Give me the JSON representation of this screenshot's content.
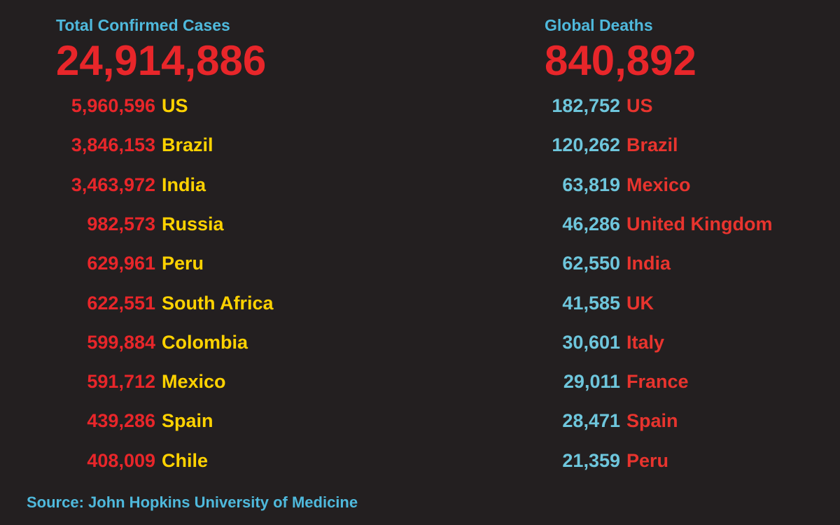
{
  "left": {
    "title": "Total Confirmed Cases",
    "total": "24,914,886",
    "rows": [
      [
        "5,960,596",
        "US"
      ],
      [
        "3,846,153",
        "Brazil"
      ],
      [
        "3,463,972",
        "India"
      ],
      [
        "982,573",
        "Russia"
      ],
      [
        "629,961",
        "Peru"
      ],
      [
        "622,551",
        "South Africa"
      ],
      [
        "599,884",
        "Colombia"
      ],
      [
        "591,712",
        "Mexico"
      ],
      [
        "439,286",
        "Spain"
      ],
      [
        "408,009",
        "Chile"
      ]
    ]
  },
  "right": {
    "title": "Global Deaths",
    "total": "840,892",
    "rows": [
      [
        "182,752",
        "US"
      ],
      [
        "120,262",
        "Brazil"
      ],
      [
        "63,819",
        "Mexico"
      ],
      [
        "46,286",
        "United Kingdom"
      ],
      [
        "62,550",
        "India"
      ],
      [
        "41,585",
        "UK"
      ],
      [
        "30,601",
        "Italy"
      ],
      [
        "29,011",
        "France"
      ],
      [
        "28,471",
        "Spain"
      ],
      [
        "21,359",
        "Peru"
      ]
    ]
  },
  "source": "Source: John Hopkins University of Medicine"
}
